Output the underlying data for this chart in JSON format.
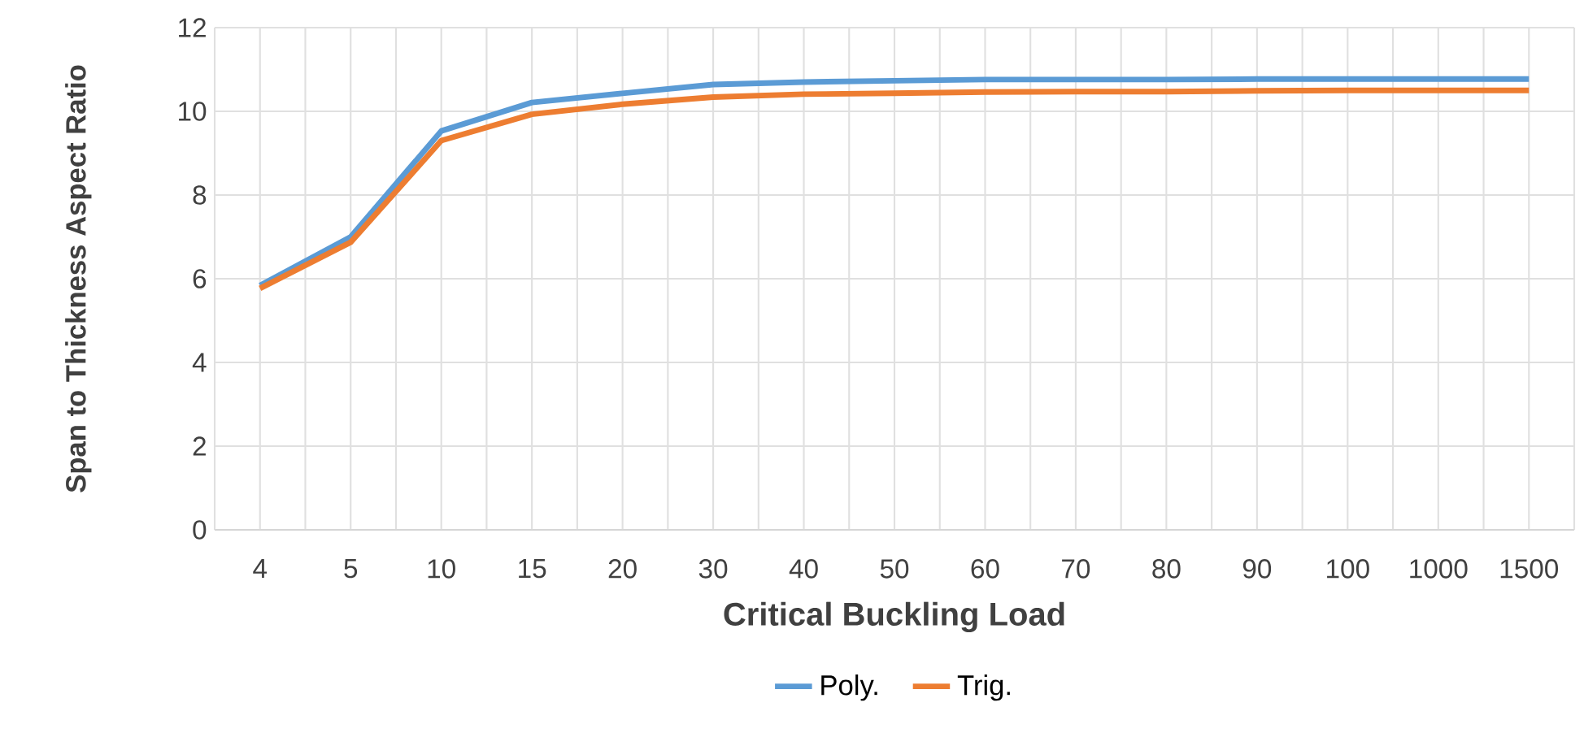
{
  "chart_data": {
    "type": "line",
    "xlabel": "Critical Buckling Load",
    "ylabel": "Span to Thickness Aspect Ratio",
    "categories": [
      "4",
      "5",
      "10",
      "15",
      "20",
      "30",
      "40",
      "50",
      "60",
      "70",
      "80",
      "90",
      "100",
      "1000",
      "1500"
    ],
    "series": [
      {
        "name": "Poly.",
        "color": "#5b9bd5",
        "values": [
          5.84,
          7.0,
          9.53,
          10.21,
          10.43,
          10.64,
          10.7,
          10.73,
          10.76,
          10.76,
          10.76,
          10.77,
          10.77,
          10.77,
          10.77
        ]
      },
      {
        "name": "Trig.",
        "color": "#ed7d31",
        "values": [
          5.77,
          6.87,
          9.3,
          9.93,
          10.17,
          10.34,
          10.41,
          10.43,
          10.46,
          10.47,
          10.47,
          10.49,
          10.5,
          10.5,
          10.5
        ]
      }
    ],
    "ylim": [
      0,
      12
    ],
    "yticks": [
      0,
      2,
      4,
      6,
      8,
      10,
      12
    ],
    "grid": true,
    "legend": "bottom",
    "marker": "none",
    "line_style": "solid"
  }
}
